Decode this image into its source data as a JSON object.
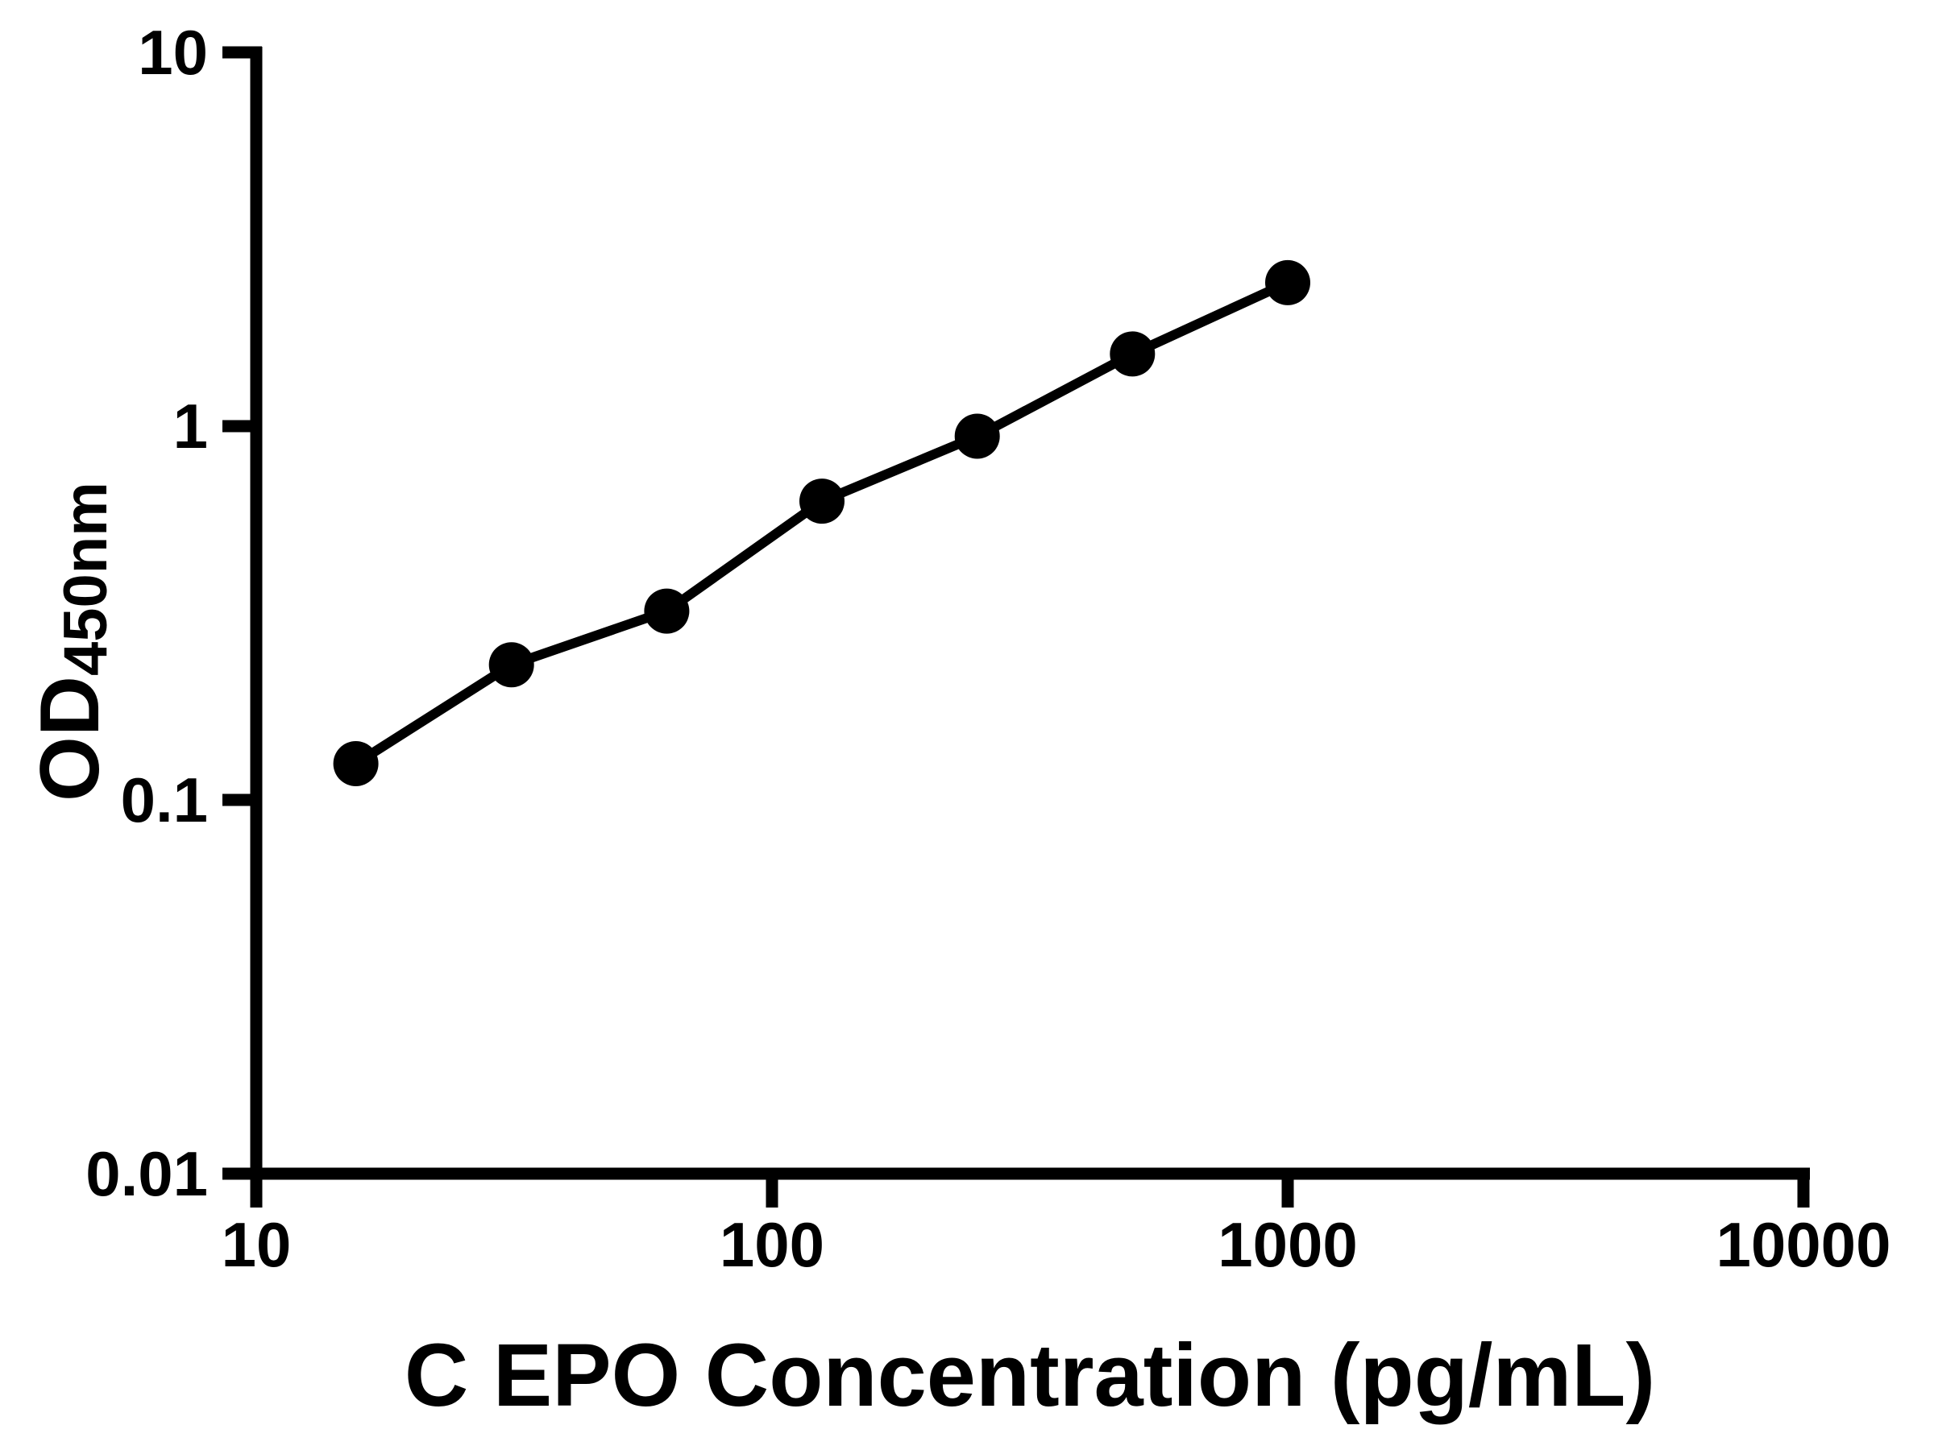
{
  "chart_data": {
    "type": "scatter",
    "title": "",
    "xlabel": "C EPO Concentration (pg/mL)",
    "ylabel": "OD",
    "ylabel_sub": "450nm",
    "x_scale": "log",
    "y_scale": "log",
    "xlim": [
      10,
      10000
    ],
    "ylim": [
      0.01,
      10
    ],
    "grid": false,
    "legend_position": "none",
    "x_ticks": [
      {
        "value": 10,
        "label": "10"
      },
      {
        "value": 100,
        "label": "100"
      },
      {
        "value": 1000,
        "label": "1000"
      },
      {
        "value": 10000,
        "label": "10000"
      }
    ],
    "y_ticks": [
      {
        "value": 10,
        "label": "10"
      },
      {
        "value": 1,
        "label": "1"
      },
      {
        "value": 0.1,
        "label": "0.1"
      },
      {
        "value": 0.01,
        "label": "0.01"
      }
    ],
    "series": [
      {
        "name": "OD450nm",
        "marker": "filled-circle",
        "line_style": "solid",
        "color": "#000000",
        "points": [
          {
            "x": 15.6,
            "y": 0.125
          },
          {
            "x": 31.25,
            "y": 0.23
          },
          {
            "x": 62.5,
            "y": 0.32
          },
          {
            "x": 125,
            "y": 0.63
          },
          {
            "x": 250,
            "y": 0.94
          },
          {
            "x": 500,
            "y": 1.56
          },
          {
            "x": 1000,
            "y": 2.42
          }
        ]
      }
    ]
  },
  "colors": {
    "foreground": "#000000",
    "background": "#ffffff"
  }
}
